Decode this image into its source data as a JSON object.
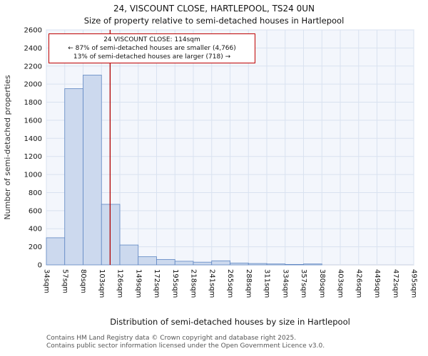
{
  "title": "24, VISCOUNT CLOSE, HARTLEPOOL, TS24 0UN",
  "subtitle": "Size of property relative to semi-detached houses in Hartlepool",
  "annotation": {
    "line1": "24 VISCOUNT CLOSE: 114sqm",
    "line2": "← 87% of semi-detached houses are smaller (4,766)",
    "line3": "13% of semi-detached houses are larger (718) →"
  },
  "footer": {
    "line1": "Contains HM Land Registry data © Crown copyright and database right 2025.",
    "line2": "Contains public sector information licensed under the Open Government Licence v3.0."
  },
  "chart_data": {
    "type": "bar",
    "title": "24, VISCOUNT CLOSE, HARTLEPOOL, TS24 0UN — Size of property relative to semi-detached houses in Hartlepool",
    "xlabel": "Distribution of semi-detached houses by size in Hartlepool",
    "ylabel": "Number of semi-detached properties",
    "tick_labels": [
      "34sqm",
      "57sqm",
      "80sqm",
      "103sqm",
      "126sqm",
      "149sqm",
      "172sqm",
      "195sqm",
      "218sqm",
      "241sqm",
      "265sqm",
      "288sqm",
      "311sqm",
      "334sqm",
      "357sqm",
      "380sqm",
      "403sqm",
      "426sqm",
      "449sqm",
      "472sqm",
      "495sqm"
    ],
    "bin_edges_sqm": [
      34,
      57,
      80,
      103,
      126,
      149,
      172,
      195,
      218,
      241,
      265,
      288,
      311,
      334,
      357,
      380,
      403,
      426,
      449,
      472,
      495
    ],
    "values": [
      300,
      1950,
      2100,
      670,
      220,
      90,
      60,
      40,
      30,
      45,
      20,
      15,
      10,
      5,
      10,
      0,
      0,
      0,
      0,
      0
    ],
    "ylim": [
      0,
      2600
    ],
    "ytick_step": 200,
    "marker_value_sqm": 114,
    "smaller_pct": 87,
    "smaller_count": 4766,
    "larger_pct": 13,
    "larger_count": 718,
    "grid": true,
    "colors": {
      "bar_fill": "#ccd9ee",
      "bar_border": "#5f86c2",
      "marker_line": "#b00000",
      "grid": "#d9e2f0",
      "plot_bg": "#f3f6fc",
      "plot_border": "#c4cede"
    }
  }
}
